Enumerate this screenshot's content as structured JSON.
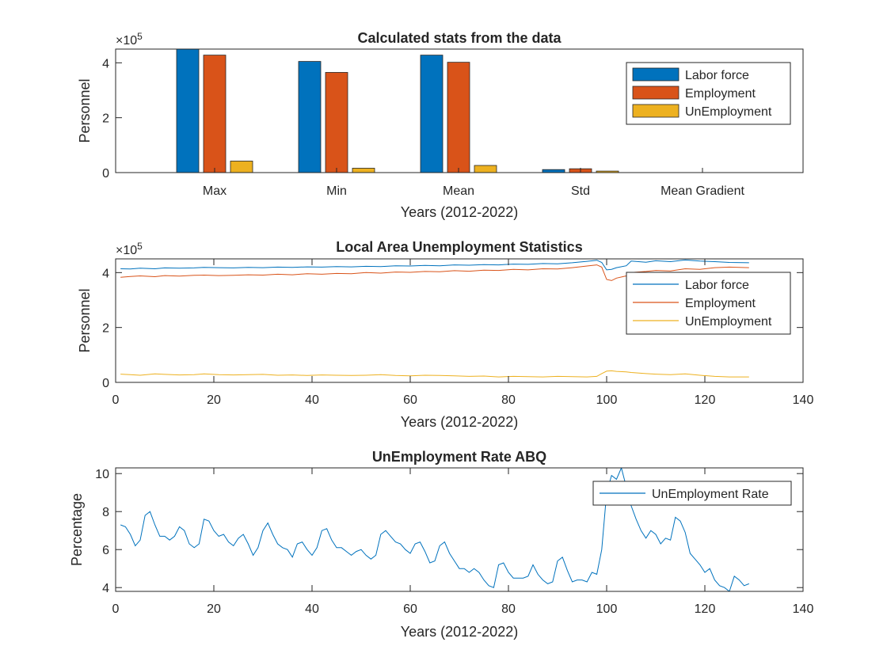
{
  "chart_data": [
    {
      "type": "bar",
      "title": "Calculated stats from the data",
      "xlabel": "Years (2012-2022)",
      "ylabel": "Personnel",
      "y_exponent": "×10^5",
      "exponent_base": "×10",
      "exponent_power": "5",
      "ylim": [
        0,
        450000
      ],
      "yticks": [
        0,
        200000,
        400000
      ],
      "ytick_labels": [
        "0",
        "2",
        "4"
      ],
      "categories": [
        "Max",
        "Min",
        "Mean",
        "Std",
        "Mean Gradient"
      ],
      "series": [
        {
          "name": "Labor force",
          "color": "#0072BD",
          "values": [
            450000,
            405000,
            428000,
            11000,
            100
          ]
        },
        {
          "name": "Employment",
          "color": "#D95319",
          "values": [
            428000,
            365000,
            402000,
            14000,
            100
          ]
        },
        {
          "name": "UnEmployment",
          "color": "#EDB120",
          "values": [
            42000,
            16000,
            26000,
            5500,
            50
          ]
        }
      ],
      "legend": "top-right"
    },
    {
      "type": "line",
      "title": "Local Area Unemployment Statistics",
      "xlabel": "Years (2012-2022)",
      "ylabel": "Personnel",
      "y_exponent": "×10^5",
      "exponent_base": "×10",
      "exponent_power": "5",
      "xlim": [
        0,
        140
      ],
      "ylim": [
        0,
        450000
      ],
      "xticks": [
        0,
        20,
        40,
        60,
        80,
        100,
        120,
        140
      ],
      "xtick_labels": [
        "0",
        "20",
        "40",
        "60",
        "80",
        "100",
        "120",
        "140"
      ],
      "yticks": [
        0,
        200000,
        400000
      ],
      "ytick_labels": [
        "0",
        "2",
        "4"
      ],
      "legend": "top-right",
      "series": [
        {
          "name": "Labor force",
          "color": "#0072BD",
          "x": [
            1,
            3,
            5,
            8,
            10,
            13,
            16,
            18,
            21,
            24,
            27,
            30,
            33,
            36,
            39,
            42,
            45,
            48,
            51,
            54,
            57,
            60,
            63,
            66,
            69,
            72,
            75,
            78,
            81,
            84,
            87,
            90,
            93,
            96,
            98,
            99,
            100,
            101,
            102,
            104,
            105,
            108,
            110,
            113,
            116,
            119,
            122,
            125,
            129
          ],
          "y": [
            414000,
            413000,
            416000,
            414000,
            417000,
            416000,
            417000,
            419000,
            418000,
            417000,
            419000,
            418000,
            420000,
            419000,
            421000,
            420000,
            422000,
            421000,
            423000,
            422000,
            425000,
            424000,
            426000,
            425000,
            428000,
            427000,
            429000,
            428000,
            431000,
            430000,
            433000,
            432000,
            436000,
            441000,
            445000,
            437000,
            410000,
            412000,
            418000,
            425000,
            442000,
            438000,
            443000,
            440000,
            446000,
            442000,
            440000,
            437000,
            436000
          ]
        },
        {
          "name": "Employment",
          "color": "#D95319",
          "x": [
            1,
            3,
            5,
            8,
            10,
            13,
            16,
            18,
            21,
            24,
            27,
            30,
            33,
            36,
            39,
            42,
            45,
            48,
            51,
            54,
            57,
            60,
            63,
            66,
            69,
            72,
            75,
            78,
            81,
            84,
            87,
            90,
            93,
            96,
            98,
            99,
            100,
            101,
            102,
            104,
            105,
            108,
            110,
            113,
            116,
            119,
            122,
            125,
            129
          ],
          "y": [
            383000,
            386000,
            388000,
            385000,
            389000,
            387000,
            390000,
            391000,
            389000,
            390000,
            392000,
            391000,
            394000,
            392000,
            396000,
            394000,
            397000,
            396000,
            400000,
            398000,
            402000,
            401000,
            404000,
            403000,
            407000,
            405000,
            409000,
            408000,
            412000,
            410000,
            414000,
            413000,
            418000,
            424000,
            428000,
            420000,
            375000,
            371000,
            380000,
            388000,
            400000,
            404000,
            408000,
            406000,
            414000,
            412000,
            418000,
            420000,
            418000
          ]
        },
        {
          "name": "UnEmployment",
          "color": "#EDB120",
          "x": [
            1,
            3,
            5,
            8,
            10,
            13,
            16,
            18,
            21,
            24,
            27,
            30,
            33,
            36,
            39,
            42,
            45,
            48,
            51,
            54,
            57,
            60,
            63,
            66,
            69,
            72,
            75,
            78,
            81,
            84,
            87,
            90,
            93,
            96,
            98,
            99,
            100,
            101,
            102,
            104,
            105,
            108,
            110,
            113,
            116,
            119,
            122,
            125,
            129
          ],
          "y": [
            30000,
            28000,
            26000,
            31000,
            29000,
            27000,
            28000,
            31000,
            28000,
            27000,
            28000,
            29000,
            26000,
            27000,
            25000,
            27000,
            26000,
            25000,
            26000,
            28000,
            25000,
            24000,
            26000,
            25000,
            24000,
            22000,
            23000,
            20000,
            22000,
            21000,
            20000,
            22000,
            21000,
            20000,
            22000,
            32000,
            41000,
            42000,
            40000,
            38000,
            36000,
            32000,
            30000,
            28000,
            31000,
            26000,
            22000,
            20000,
            20000
          ]
        }
      ]
    },
    {
      "type": "line",
      "title": "UnEmployment Rate ABQ",
      "xlabel": "Years (2012-2022)",
      "ylabel": "Percentage",
      "xlim": [
        0,
        140
      ],
      "ylim": [
        3.8,
        10.3
      ],
      "xticks": [
        0,
        20,
        40,
        60,
        80,
        100,
        120,
        140
      ],
      "xtick_labels": [
        "0",
        "20",
        "40",
        "60",
        "80",
        "100",
        "120",
        "140"
      ],
      "yticks": [
        4,
        6,
        8,
        10
      ],
      "ytick_labels": [
        "4",
        "6",
        "8",
        "10"
      ],
      "legend": "top-right",
      "series": [
        {
          "name": "UnEmployment Rate",
          "color": "#0072BD",
          "x": [
            1,
            2,
            3,
            4,
            5,
            6,
            7,
            8,
            9,
            10,
            11,
            12,
            13,
            14,
            15,
            16,
            17,
            18,
            19,
            20,
            21,
            22,
            23,
            24,
            25,
            26,
            27,
            28,
            29,
            30,
            31,
            32,
            33,
            34,
            35,
            36,
            37,
            38,
            39,
            40,
            41,
            42,
            43,
            44,
            45,
            46,
            47,
            48,
            49,
            50,
            51,
            52,
            53,
            54,
            55,
            56,
            57,
            58,
            59,
            60,
            61,
            62,
            63,
            64,
            65,
            66,
            67,
            68,
            69,
            70,
            71,
            72,
            73,
            74,
            75,
            76,
            77,
            78,
            79,
            80,
            81,
            82,
            83,
            84,
            85,
            86,
            87,
            88,
            89,
            90,
            91,
            92,
            93,
            94,
            95,
            96,
            97,
            98,
            99,
            100,
            101,
            102,
            103,
            104,
            105,
            106,
            107,
            108,
            109,
            110,
            111,
            112,
            113,
            114,
            115,
            116,
            117,
            118,
            119,
            120,
            121,
            122,
            123,
            124,
            125,
            126,
            127,
            128,
            129
          ],
          "y": [
            7.3,
            7.2,
            6.8,
            6.2,
            6.5,
            7.8,
            8.0,
            7.3,
            6.7,
            6.7,
            6.5,
            6.7,
            7.2,
            7.0,
            6.3,
            6.1,
            6.3,
            7.6,
            7.5,
            7.0,
            6.7,
            6.8,
            6.4,
            6.2,
            6.6,
            6.8,
            6.3,
            5.7,
            6.1,
            7.0,
            7.4,
            6.8,
            6.3,
            6.1,
            6.0,
            5.6,
            6.3,
            6.4,
            6.0,
            5.7,
            6.1,
            7.0,
            7.1,
            6.5,
            6.1,
            6.1,
            5.9,
            5.7,
            5.9,
            6.0,
            5.7,
            5.5,
            5.7,
            6.8,
            7.0,
            6.7,
            6.4,
            6.3,
            6.0,
            5.8,
            6.3,
            6.4,
            5.9,
            5.3,
            5.4,
            6.2,
            6.4,
            5.8,
            5.4,
            5.0,
            5.0,
            4.8,
            5.0,
            4.8,
            4.4,
            4.1,
            4.0,
            5.2,
            5.3,
            4.8,
            4.5,
            4.5,
            4.5,
            4.6,
            5.2,
            4.7,
            4.4,
            4.2,
            4.3,
            5.4,
            5.6,
            4.9,
            4.3,
            4.4,
            4.4,
            4.3,
            4.8,
            4.7,
            6.0,
            9.0,
            9.9,
            9.7,
            10.3,
            9.3,
            8.3,
            7.6,
            7.0,
            6.6,
            7.0,
            6.8,
            6.3,
            6.6,
            6.5,
            7.7,
            7.5,
            6.9,
            5.8,
            5.5,
            5.2,
            4.8,
            5.0,
            4.4,
            4.1,
            4.0,
            3.8,
            4.6,
            4.4,
            4.1,
            4.2
          ]
        }
      ]
    }
  ]
}
